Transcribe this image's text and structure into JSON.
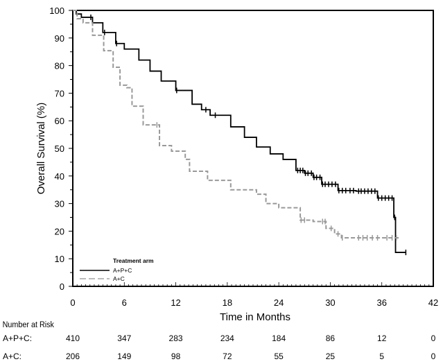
{
  "chart_data": {
    "type": "line",
    "subtype": "kaplan-meier step",
    "title": "",
    "xlabel": "Time in Months",
    "ylabel": "Overall Survival (%)",
    "xlim": [
      0,
      42
    ],
    "ylim": [
      0,
      100
    ],
    "xticks": [
      0,
      6,
      12,
      18,
      24,
      30,
      36,
      42
    ],
    "yticks": [
      0,
      10,
      20,
      30,
      40,
      50,
      60,
      70,
      80,
      90,
      100
    ],
    "grid": false,
    "legend": {
      "title": "Treatment arm",
      "placement": "bottom-left"
    },
    "series": [
      {
        "name": "A+P+C",
        "color": "#000000",
        "style": "solid",
        "points": [
          [
            0,
            100
          ],
          [
            0.4,
            98.7
          ],
          [
            1,
            97.5
          ],
          [
            2.3,
            95.5
          ],
          [
            3.5,
            92
          ],
          [
            5,
            88
          ],
          [
            6,
            86
          ],
          [
            7.7,
            82
          ],
          [
            9,
            78
          ],
          [
            10.3,
            74.4
          ],
          [
            12,
            71
          ],
          [
            13.9,
            66
          ],
          [
            15,
            64
          ],
          [
            16,
            62
          ],
          [
            18.4,
            57.8
          ],
          [
            20,
            54
          ],
          [
            21.4,
            50.5
          ],
          [
            23,
            48
          ],
          [
            24.5,
            46
          ],
          [
            26,
            42
          ],
          [
            27,
            41
          ],
          [
            28,
            39.5
          ],
          [
            29,
            37
          ],
          [
            30.9,
            34.7
          ],
          [
            33,
            34.5
          ],
          [
            35.5,
            32
          ],
          [
            37.4,
            32
          ],
          [
            37.4,
            25
          ],
          [
            37.6,
            24
          ],
          [
            37.6,
            12.3
          ],
          [
            38.8,
            12.3
          ]
        ],
        "censored": [
          2.1,
          3.7,
          5.1,
          12.1,
          15.5,
          16.6,
          26.2,
          26.5,
          26.8,
          27.1,
          27.4,
          27.8,
          28.1,
          28.4,
          28.8,
          29.1,
          29.4,
          29.8,
          30.2,
          30.6,
          31,
          31.4,
          31.8,
          32.3,
          32.7,
          33.3,
          33.6,
          34,
          34.4,
          34.8,
          35.2,
          35.6,
          36,
          36.4,
          36.8,
          37.2,
          37.5,
          38.8
        ]
      },
      {
        "name": "A+C",
        "color": "#999999",
        "style": "dashed",
        "points": [
          [
            0,
            100
          ],
          [
            0.5,
            97
          ],
          [
            1.2,
            95.5
          ],
          [
            2.3,
            91
          ],
          [
            3.6,
            85.4
          ],
          [
            4.7,
            79.4
          ],
          [
            5.5,
            72.9
          ],
          [
            6.3,
            72
          ],
          [
            6.9,
            65.3
          ],
          [
            8.2,
            58.5
          ],
          [
            10.1,
            51
          ],
          [
            11.5,
            49
          ],
          [
            13.1,
            46
          ],
          [
            13.6,
            41.7
          ],
          [
            15.7,
            38.4
          ],
          [
            18.4,
            35
          ],
          [
            21.4,
            33.4
          ],
          [
            22.5,
            30
          ],
          [
            24,
            28.5
          ],
          [
            26.5,
            24
          ],
          [
            28,
            23.5
          ],
          [
            29.5,
            21
          ],
          [
            30.5,
            19
          ],
          [
            31.3,
            17.6
          ],
          [
            38,
            17.6
          ]
        ],
        "censored": [
          9.8,
          26.6,
          27,
          29.1,
          29.4,
          30.1,
          30.9,
          31.4,
          33.3,
          33.8,
          34.3,
          34.9,
          35.5,
          36.6,
          37.2,
          37.7
        ]
      }
    ],
    "risk_table": {
      "title": "Number at Risk",
      "times": [
        0,
        6,
        12,
        18,
        24,
        30,
        36,
        42
      ],
      "rows": [
        {
          "label": "A+P+C:",
          "values": [
            "410",
            "347",
            "283",
            "234",
            "184",
            "86",
            "12",
            "0"
          ]
        },
        {
          "label": "A+C:",
          "values": [
            "206",
            "149",
            "98",
            "72",
            "55",
            "25",
            "5",
            "0"
          ]
        }
      ]
    }
  }
}
